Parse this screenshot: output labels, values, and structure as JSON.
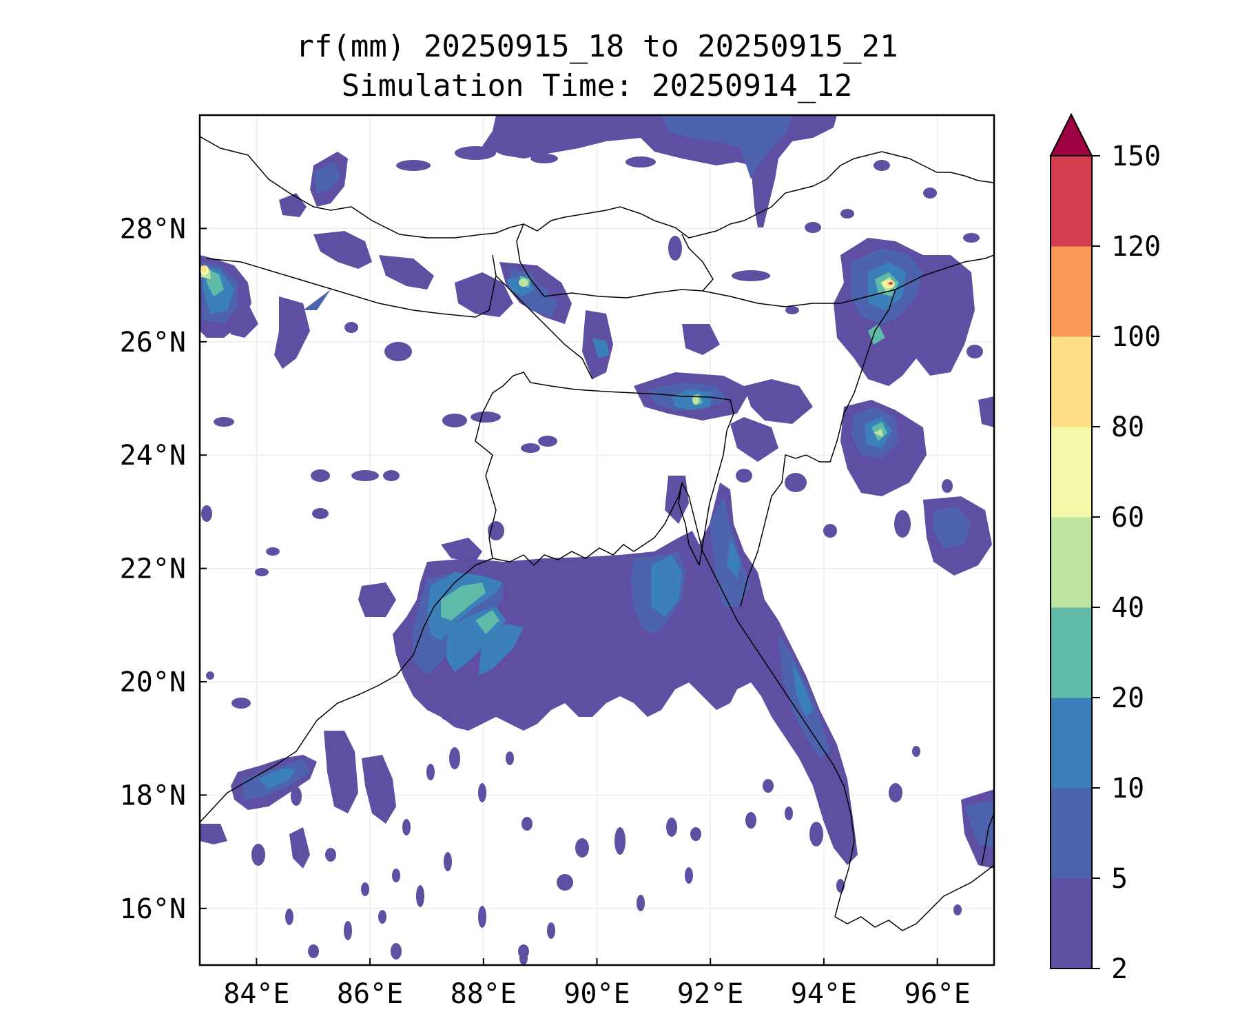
{
  "title": {
    "line1": "rf(mm) 20250915_18 to 20250915_21",
    "line2": "Simulation Time: 20250914_12"
  },
  "map": {
    "lon_range": [
      83,
      97
    ],
    "lat_range": [
      15,
      30
    ],
    "lon_ticks": [
      "84°E",
      "86°E",
      "88°E",
      "90°E",
      "92°E",
      "94°E",
      "96°E"
    ],
    "lat_ticks": [
      "16°N",
      "18°N",
      "20°N",
      "22°N",
      "24°N",
      "26°N",
      "28°N"
    ],
    "gridlines": true
  },
  "colorbar": {
    "levels": [
      "2",
      "5",
      "10",
      "20",
      "40",
      "60",
      "80",
      "100",
      "120",
      "150"
    ],
    "colors": [
      "#5e4fa2",
      "#4e63ad",
      "#3b80b9",
      "#5fbaa8",
      "#bde4a0",
      "#f3f9a9",
      "#fddf88",
      "#f99b57",
      "#d43d4f",
      "#9e0142"
    ],
    "extend": "max"
  }
}
